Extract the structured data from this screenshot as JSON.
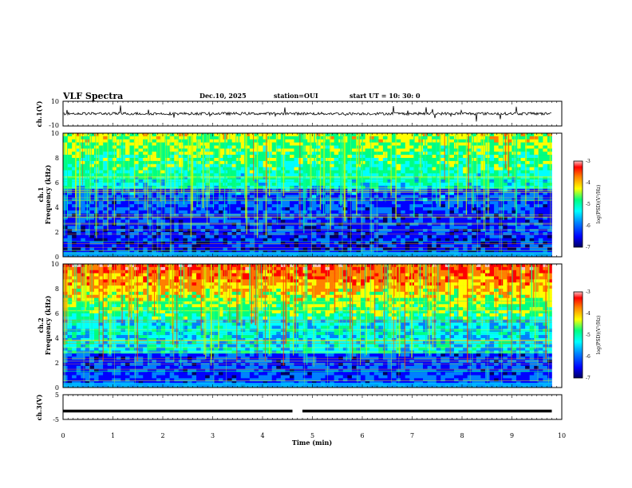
{
  "header": {
    "title": "VLF Spectra",
    "date": "Dec.10, 2025",
    "station": "station=OUI",
    "start": "start  UT =   10: 30: 0"
  },
  "colors": {
    "spectrum_scale": [
      "#000060",
      "#0000ff",
      "#0080ff",
      "#00ffff",
      "#00ff80",
      "#ffff00",
      "#ff8000",
      "#ff0000",
      "#ffc0c0"
    ]
  },
  "chart_data": [
    {
      "id": "ch1_waveform",
      "type": "line",
      "ylabel": "ch.1(V)",
      "ylim": [
        -10,
        10
      ],
      "yticks": [
        "10",
        "-10"
      ],
      "baseline": 0,
      "trace_end_min": 9.8
    },
    {
      "id": "ch1_spectrogram",
      "type": "heatmap",
      "ylabel": "ch.1\nFrequency  (kHz)",
      "ylim": [
        0,
        10
      ],
      "yticks": [
        "0",
        "2",
        "4",
        "6",
        "8",
        "10"
      ],
      "colorbar": {
        "label": "log(PSD)(V²/Hz)",
        "range": [
          -7,
          -3
        ],
        "ticks": [
          "-3",
          "-4",
          "-5",
          "-6",
          "-7"
        ]
      }
    },
    {
      "id": "ch2_spectrogram",
      "type": "heatmap",
      "ylabel": "ch.2\nFrequency  (kHz)",
      "ylim": [
        0,
        10
      ],
      "yticks": [
        "0",
        "2",
        "4",
        "6",
        "8",
        "10"
      ],
      "colorbar": {
        "label": "log(PSD)(V²/Hz)",
        "range": [
          -7,
          -3
        ],
        "ticks": [
          "-3",
          "-4",
          "-5",
          "-6",
          "-7"
        ]
      }
    },
    {
      "id": "ch3_waveform",
      "type": "line",
      "ylabel": "ch.3(V)",
      "ylim": [
        -5,
        5
      ],
      "yticks": [
        "5",
        "-5"
      ],
      "baseline": -1.6,
      "gap_min": [
        4.6,
        4.8
      ],
      "trace_end_min": 9.8
    }
  ],
  "xaxis": {
    "label": "Time  (min)",
    "range": [
      0,
      10
    ],
    "ticks": [
      "0",
      "1",
      "2",
      "3",
      "4",
      "5",
      "6",
      "7",
      "8",
      "9",
      "10"
    ]
  }
}
